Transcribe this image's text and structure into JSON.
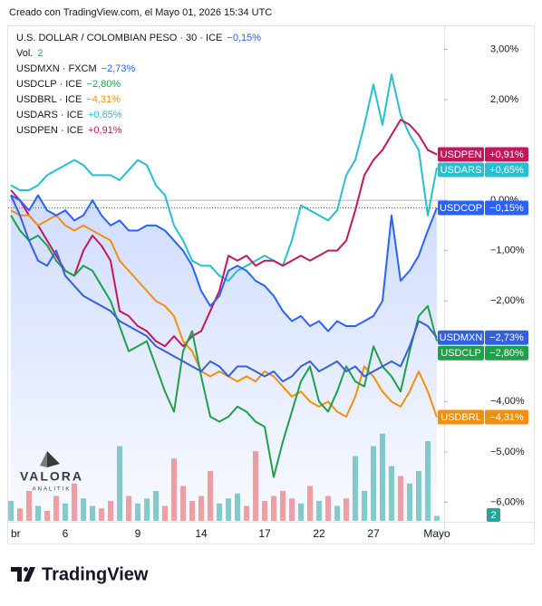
{
  "chart_data": {
    "type": "line",
    "header": "Creado con TradingView.com, el Mayo 01, 2026 15:34 UTC",
    "brand": "TradingView",
    "watermark": {
      "title": "VALORA",
      "subtitle": "ANALITIK"
    },
    "categories": [
      "br",
      null,
      null,
      null,
      null,
      null,
      "6",
      null,
      null,
      null,
      null,
      null,
      null,
      null,
      "9",
      null,
      null,
      null,
      null,
      null,
      null,
      "14",
      null,
      null,
      null,
      null,
      null,
      null,
      "17",
      null,
      null,
      null,
      null,
      null,
      "22",
      null,
      null,
      null,
      null,
      null,
      "27",
      null,
      null,
      null,
      null,
      null,
      null,
      "Mayo"
    ],
    "ylim": [
      -6.37,
      3.44
    ],
    "yticks": [
      {
        "value": 3,
        "label": "3,00%"
      },
      {
        "value": 2,
        "label": "2,00%"
      },
      {
        "value": 0,
        "label": "0,00%"
      },
      {
        "value": -1,
        "label": "−1,00%"
      },
      {
        "value": -2,
        "label": "−2,00%"
      },
      {
        "value": -4,
        "label": "−4,00%"
      },
      {
        "value": -5,
        "label": "−5,00%"
      },
      {
        "value": -6,
        "label": "−6,00%"
      }
    ],
    "grid": false,
    "series": [
      {
        "name": "USDARS",
        "legend": "USDARS · ICE",
        "color": "#26bfd2",
        "change": 0.65,
        "change_label": "+0,65%",
        "values": [
          0.3,
          0.2,
          0.2,
          0.3,
          0.5,
          0.6,
          0.7,
          0.8,
          0.7,
          0.5,
          0.5,
          0.5,
          0.4,
          0.6,
          0.8,
          0.7,
          0.3,
          0.1,
          -0.5,
          -0.8,
          -1.2,
          -1.3,
          -1.3,
          -1.5,
          -1.6,
          -1.4,
          -1.3,
          -1.2,
          -1.1,
          -1.2,
          -1.3,
          -0.8,
          -0.1,
          -0.2,
          -0.3,
          -0.4,
          -0.2,
          0.5,
          0.8,
          1.5,
          2.3,
          1.5,
          2.5,
          1.7,
          1.3,
          1.0,
          -0.3,
          0.65
        ]
      },
      {
        "name": "USDPEN",
        "legend": "USDPEN · ICE",
        "color": "#c2185b",
        "change": 0.91,
        "change_label": "+0,91%",
        "values": [
          0.2,
          0.0,
          -0.3,
          -0.5,
          -0.8,
          -1.1,
          -1.4,
          -1.5,
          -1.0,
          -0.7,
          -0.9,
          -1.2,
          -2.2,
          -2.3,
          -2.5,
          -2.6,
          -2.8,
          -2.9,
          -2.7,
          -2.9,
          -2.7,
          -2.6,
          -2.2,
          -1.8,
          -1.1,
          -1.2,
          -1.1,
          -1.3,
          -1.2,
          -1.2,
          -1.3,
          -1.2,
          -1.1,
          -1.2,
          -1.1,
          -1.0,
          -1.0,
          -0.8,
          -0.2,
          0.5,
          0.8,
          1.0,
          1.3,
          1.6,
          1.5,
          1.3,
          1.0,
          0.91
        ]
      },
      {
        "name": "USDBRL",
        "legend": "USDBRL · ICE",
        "color": "#f0900e",
        "change": -4.31,
        "change_label": "−4,31%",
        "values": [
          -0.2,
          -0.3,
          -0.3,
          -0.5,
          -0.4,
          -0.3,
          -0.5,
          -0.6,
          -0.5,
          -0.6,
          -0.7,
          -0.8,
          -1.2,
          -1.4,
          -1.6,
          -1.8,
          -2.0,
          -2.1,
          -2.3,
          -2.8,
          -3.0,
          -3.4,
          -3.5,
          -3.4,
          -3.5,
          -3.6,
          -3.5,
          -3.6,
          -3.4,
          -3.5,
          -3.7,
          -3.9,
          -3.8,
          -4.0,
          -4.1,
          -4.0,
          -4.2,
          -4.3,
          -3.9,
          -3.3,
          -3.5,
          -3.8,
          -4.0,
          -4.1,
          -3.8,
          -3.4,
          -3.8,
          -4.31
        ]
      },
      {
        "name": "USDCLP",
        "legend": "USDCLP · ICE",
        "color": "#1fa04a",
        "change": -2.8,
        "change_label": "−2,80%",
        "values": [
          -0.3,
          -0.6,
          -0.8,
          -0.7,
          -0.9,
          -1.2,
          -1.4,
          -1.5,
          -1.3,
          -1.4,
          -1.7,
          -2.0,
          -2.5,
          -3.0,
          -2.9,
          -2.8,
          -3.3,
          -3.8,
          -4.2,
          -3.0,
          -2.6,
          -3.5,
          -4.3,
          -4.4,
          -4.3,
          -4.1,
          -4.2,
          -4.4,
          -4.5,
          -5.5,
          -4.8,
          -4.2,
          -3.6,
          -3.3,
          -4.0,
          -4.2,
          -3.8,
          -3.3,
          -3.6,
          -3.7,
          -2.9,
          -3.3,
          -3.5,
          -3.8,
          -3.0,
          -2.3,
          -2.1,
          -2.8
        ]
      },
      {
        "name": "USDMXN",
        "legend": "USDMXN · FXCM",
        "color": "#3560dc",
        "change": -2.73,
        "change_label": "−2,73%",
        "values": [
          0.1,
          -0.3,
          -0.8,
          -1.2,
          -1.3,
          -1.0,
          -1.5,
          -1.7,
          -1.9,
          -2.0,
          -2.1,
          -2.2,
          -2.4,
          -2.5,
          -2.6,
          -2.7,
          -2.9,
          -3.0,
          -3.1,
          -3.2,
          -3.3,
          -3.4,
          -3.2,
          -3.3,
          -3.5,
          -3.3,
          -3.3,
          -3.4,
          -3.5,
          -3.4,
          -3.6,
          -3.5,
          -3.3,
          -3.2,
          -3.4,
          -3.3,
          -3.2,
          -3.4,
          -3.3,
          -3.5,
          -3.4,
          -3.3,
          -3.2,
          -3.3,
          -2.9,
          -2.4,
          -2.5,
          -2.73
        ]
      },
      {
        "name": "USDCOP",
        "legend": "U.S. DOLLAR / COLOMBIAN PESO · 30 · ICE",
        "color": "#2962ff",
        "main": true,
        "change": -0.15,
        "change_label": "−0,15%",
        "values": [
          0.1,
          0.0,
          -0.2,
          0.1,
          -0.2,
          -0.3,
          -0.2,
          -0.4,
          -0.3,
          0.0,
          -0.3,
          -0.5,
          -0.4,
          -0.6,
          -0.6,
          -0.5,
          -0.5,
          -0.6,
          -0.8,
          -1.0,
          -1.3,
          -1.8,
          -2.1,
          -1.9,
          -1.4,
          -1.3,
          -1.4,
          -1.6,
          -1.7,
          -1.9,
          -2.2,
          -2.4,
          -2.3,
          -2.5,
          -2.4,
          -2.6,
          -2.4,
          -2.5,
          -2.5,
          -2.4,
          -2.3,
          -2.0,
          -0.3,
          -1.6,
          -1.4,
          -1.1,
          -0.6,
          -0.15
        ]
      }
    ],
    "volume": {
      "name": "Vol.",
      "up_color": "#26a69a",
      "down_color": "#ef5350",
      "max": 40,
      "values": [
        8,
        5,
        12,
        6,
        4,
        10,
        7,
        15,
        9,
        6,
        5,
        8,
        30,
        10,
        7,
        9,
        12,
        6,
        25,
        14,
        8,
        10,
        20,
        7,
        9,
        11,
        6,
        28,
        8,
        10,
        12,
        9,
        7,
        14,
        8,
        10,
        6,
        9,
        26,
        12,
        30,
        35,
        22,
        18,
        15,
        20,
        32,
        2
      ]
    }
  }
}
